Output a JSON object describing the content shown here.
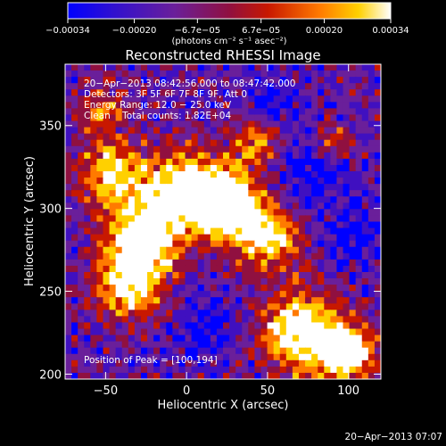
{
  "chart_data": {
    "type": "heatmap",
    "title": "Reconstructed RHESSI Image",
    "xlabel": "Heliocentric X (arcsec)",
    "ylabel": "Heliocentric Y (arcsec)",
    "xlim": [
      -75,
      120
    ],
    "ylim": [
      197,
      387
    ],
    "x_ticks": [
      {
        "value": -50,
        "label": "−50"
      },
      {
        "value": 0,
        "label": "0"
      },
      {
        "value": 50,
        "label": "50"
      },
      {
        "value": 100,
        "label": "100"
      }
    ],
    "y_ticks": [
      {
        "value": 200,
        "label": "200"
      },
      {
        "value": 250,
        "label": "250"
      },
      {
        "value": 300,
        "label": "300"
      },
      {
        "value": 350,
        "label": "350"
      }
    ],
    "colorbar": {
      "range": [
        -0.00034,
        0.00034
      ],
      "ticks": [
        {
          "value": -0.00034,
          "label": "−0.00034"
        },
        {
          "value": -0.0002,
          "label": "−0.00020"
        },
        {
          "value": -6.7e-05,
          "label": "−6.7e−05"
        },
        {
          "value": 6.7e-05,
          "label": "6.7e−05"
        },
        {
          "value": 0.0002,
          "label": "0.00020"
        },
        {
          "value": 0.00034,
          "label": "0.00034"
        }
      ],
      "unit_label": "(photons cm⁻² s⁻¹ asec⁻²)",
      "colors": [
        "#0000ff",
        "#4010c0",
        "#6a1f9a",
        "#901040",
        "#c81800",
        "#ff7a00",
        "#ffd000",
        "#ffffff"
      ]
    },
    "annotations": [
      "20−Apr−2013 08:42:56.000 to 08:47:42.000",
      "Detectors: 3F 5F 6F 7F 8F 9F, Att 0",
      "Energy Range: 12.0 − 25.0 keV",
      "Clean    Total counts: 1.82E+04"
    ],
    "peak_label": "Position of Peak = [100,194]",
    "timestamp": "20−Apr−2013 07:07",
    "grid": false,
    "legend": "none"
  }
}
